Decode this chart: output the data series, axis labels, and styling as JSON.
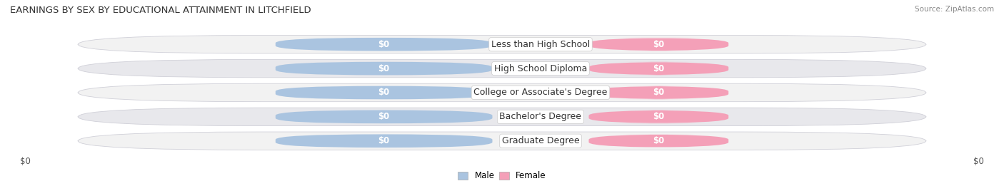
{
  "title": "EARNINGS BY SEX BY EDUCATIONAL ATTAINMENT IN LITCHFIELD",
  "source": "Source: ZipAtlas.com",
  "categories": [
    "Less than High School",
    "High School Diploma",
    "College or Associate's Degree",
    "Bachelor's Degree",
    "Graduate Degree"
  ],
  "male_color": "#aac4e0",
  "female_color": "#f4a0b8",
  "male_label": "Male",
  "female_label": "Female",
  "bar_label_color": "#ffffff",
  "background_color": "#ffffff",
  "row_bg_light": "#f2f2f2",
  "row_bg_dark": "#e8e8ec",
  "xlabel_left": "$0",
  "xlabel_right": "$0",
  "value_label_text": "$0",
  "label_fontsize": 8.5,
  "title_fontsize": 9.5,
  "category_fontsize": 9.0,
  "source_fontsize": 7.5
}
